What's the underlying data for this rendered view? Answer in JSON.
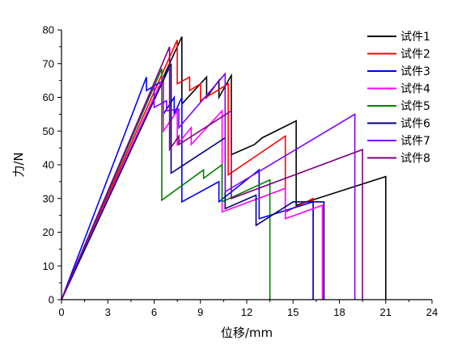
{
  "chart_data": {
    "type": "line",
    "xlabel": "位移/mm",
    "ylabel": "力/N",
    "xlim": [
      0,
      24
    ],
    "ylim": [
      0,
      80
    ],
    "xticks": [
      0,
      3,
      6,
      9,
      12,
      15,
      18,
      21,
      24
    ],
    "yticks": [
      0,
      10,
      20,
      30,
      40,
      50,
      60,
      70,
      80
    ],
    "grid": false,
    "legend_position": "top-right",
    "series": [
      {
        "name": "试件1",
        "color": "#000000",
        "points": [
          [
            0,
            0
          ],
          [
            7.8,
            78
          ],
          [
            7.8,
            58
          ],
          [
            9.4,
            66
          ],
          [
            9.4,
            60
          ],
          [
            10.2,
            65
          ],
          [
            10.2,
            60
          ],
          [
            11.0,
            66.5
          ],
          [
            11.0,
            43
          ],
          [
            12.5,
            46
          ],
          [
            13.0,
            48
          ],
          [
            15.2,
            53
          ],
          [
            15.2,
            28
          ],
          [
            21.0,
            36.5
          ],
          [
            21.0,
            0
          ]
        ]
      },
      {
        "name": "试件2",
        "color": "#ff0000",
        "points": [
          [
            0,
            0
          ],
          [
            7.5,
            77
          ],
          [
            7.5,
            64
          ],
          [
            8.3,
            66
          ],
          [
            8.3,
            62
          ],
          [
            9.0,
            64
          ],
          [
            9.0,
            59
          ],
          [
            10.8,
            64
          ],
          [
            10.8,
            37
          ],
          [
            14.5,
            48.5
          ],
          [
            14.5,
            26
          ],
          [
            16.3,
            30
          ],
          [
            16.3,
            0
          ]
        ]
      },
      {
        "name": "试件3",
        "color": "#0000ff",
        "points": [
          [
            0,
            0
          ],
          [
            5.5,
            66
          ],
          [
            5.5,
            62
          ],
          [
            6.6,
            65
          ],
          [
            6.6,
            55
          ],
          [
            7.3,
            60
          ],
          [
            7.3,
            55
          ],
          [
            7.8,
            60
          ],
          [
            7.8,
            29
          ],
          [
            10.2,
            35
          ],
          [
            10.2,
            29
          ],
          [
            12.8,
            38.5
          ],
          [
            12.8,
            24
          ],
          [
            16.3,
            29
          ],
          [
            16.3,
            0
          ]
        ]
      },
      {
        "name": "试件4",
        "color": "#ff00ff",
        "points": [
          [
            0,
            0
          ],
          [
            6.6,
            66
          ],
          [
            6.6,
            50
          ],
          [
            7.5,
            56
          ],
          [
            7.5,
            46
          ],
          [
            8.4,
            51
          ],
          [
            8.4,
            46
          ],
          [
            10.4,
            56
          ],
          [
            10.4,
            26
          ],
          [
            14.5,
            33
          ],
          [
            14.5,
            24
          ],
          [
            16.9,
            28
          ],
          [
            16.9,
            0
          ]
        ]
      },
      {
        "name": "试件5",
        "color": "#008000",
        "points": [
          [
            0,
            0
          ],
          [
            6.5,
            68.5
          ],
          [
            6.5,
            29.5
          ],
          [
            9.2,
            38.5
          ],
          [
            9.2,
            36
          ],
          [
            10.4,
            40
          ],
          [
            10.4,
            29
          ],
          [
            13.5,
            35.5
          ],
          [
            13.5,
            0
          ]
        ]
      },
      {
        "name": "试件6",
        "color": "#000080",
        "points": [
          [
            0,
            0
          ],
          [
            7.1,
            70
          ],
          [
            7.1,
            37.5
          ],
          [
            10.6,
            48
          ],
          [
            10.6,
            27
          ],
          [
            12.6,
            31
          ],
          [
            12.6,
            22
          ],
          [
            15.0,
            29
          ],
          [
            17.0,
            29
          ],
          [
            17.0,
            0
          ]
        ]
      },
      {
        "name": "试件7",
        "color": "#8000ff",
        "points": [
          [
            0,
            0
          ],
          [
            6.0,
            64
          ],
          [
            6.0,
            57
          ],
          [
            6.8,
            59
          ],
          [
            6.8,
            56
          ],
          [
            7.6,
            56.5
          ],
          [
            7.6,
            51
          ],
          [
            10.6,
            67
          ],
          [
            10.6,
            32
          ],
          [
            19.0,
            55
          ],
          [
            19.0,
            0
          ]
        ]
      },
      {
        "name": "试件8",
        "color": "#800080",
        "points": [
          [
            0,
            0
          ],
          [
            7.0,
            75
          ],
          [
            7.0,
            44.5
          ],
          [
            7.6,
            48.5
          ],
          [
            7.6,
            46
          ],
          [
            11.0,
            56
          ],
          [
            11.0,
            30
          ],
          [
            19.5,
            44.5
          ],
          [
            19.5,
            0
          ]
        ]
      }
    ]
  }
}
